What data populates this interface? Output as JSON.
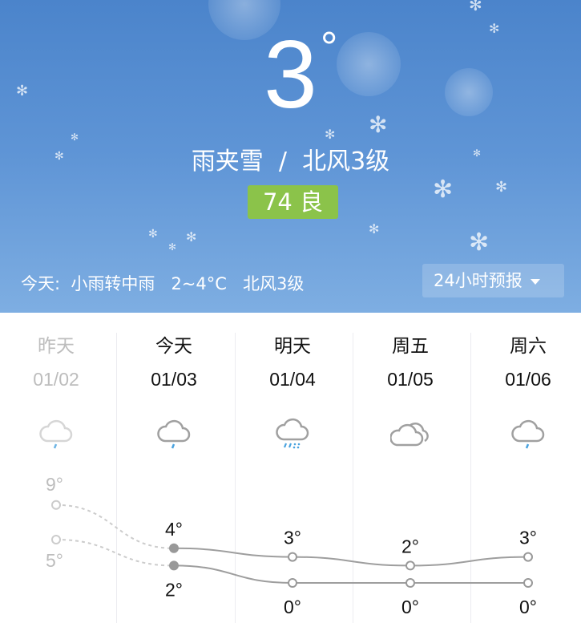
{
  "current": {
    "temperature": "3",
    "degree_symbol": "°",
    "condition": "雨夹雪",
    "separator": "/",
    "wind": "北风3级"
  },
  "aqi": {
    "label": "74 良",
    "color": "#8bc34a"
  },
  "today_summary": "今天:  小雨转中雨   2~4°C   北风3级",
  "forecast_button": {
    "label": "24小时预报",
    "icon": "caret-down-icon"
  },
  "days": [
    {
      "label": "昨天",
      "date": "01/02",
      "icon": "light-rain-icon",
      "past": true
    },
    {
      "label": "今天",
      "date": "01/03",
      "icon": "light-rain-icon",
      "past": false
    },
    {
      "label": "明天",
      "date": "01/04",
      "icon": "sleet-icon",
      "past": false
    },
    {
      "label": "周五",
      "date": "01/05",
      "icon": "cloudy-icon",
      "past": false
    },
    {
      "label": "周六",
      "date": "01/06",
      "icon": "light-rain-icon",
      "past": false
    }
  ],
  "chart_data": {
    "type": "line",
    "categories": [
      "01/02",
      "01/03",
      "01/04",
      "01/05",
      "01/06"
    ],
    "series": [
      {
        "name": "high",
        "values": [
          9,
          4,
          3,
          2,
          3
        ],
        "labels": [
          "9°",
          "4°",
          "3°",
          "2°",
          "3°"
        ]
      },
      {
        "name": "low",
        "values": [
          5,
          2,
          0,
          0,
          0
        ],
        "labels": [
          "5°",
          "2°",
          "0°",
          "0°",
          "0°"
        ]
      }
    ],
    "colors": {
      "line": "#9e9e9e",
      "past": "#cccccc",
      "rain": "#4aa3df"
    }
  }
}
